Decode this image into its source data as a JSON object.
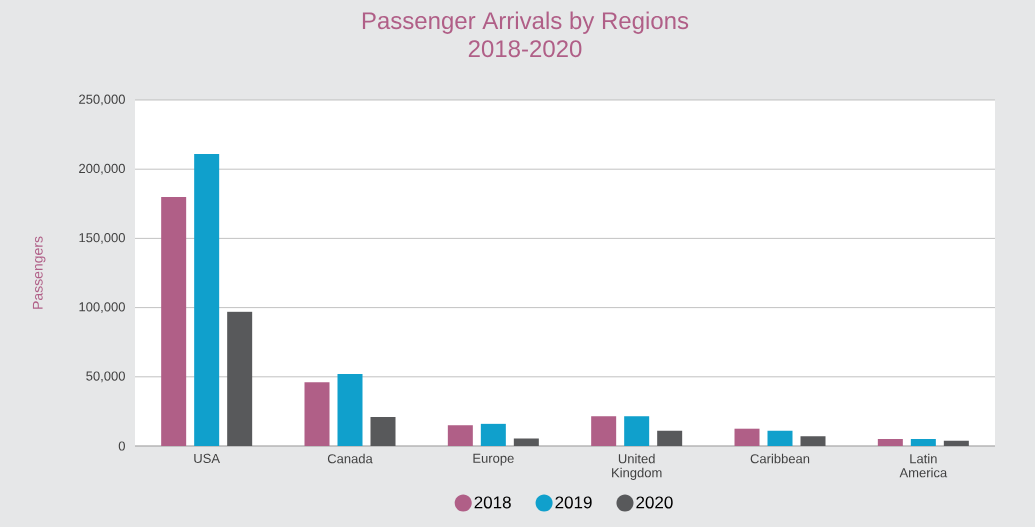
{
  "chart_data": {
    "type": "bar",
    "title": "Passenger Arrivals by Regions",
    "subtitle": "2018-2020",
    "ylabel": "Passengers",
    "categories": [
      "USA",
      "Canada",
      "Europe",
      "United Kingdom",
      "Caribbean",
      "Latin America"
    ],
    "series": [
      {
        "name": "2018",
        "color": "#b05f87",
        "values": [
          180000,
          46000,
          15000,
          21500,
          12500,
          5000
        ]
      },
      {
        "name": "2019",
        "color": "#10a0cc",
        "values": [
          211000,
          52000,
          16000,
          21500,
          11000,
          5000
        ]
      },
      {
        "name": "2020",
        "color": "#58595b",
        "values": [
          97000,
          21000,
          5500,
          11000,
          7000,
          3800
        ]
      }
    ],
    "ylim": [
      0,
      250000
    ],
    "yticks": [
      0,
      {
        "value": 50000,
        "label": "50,000"
      },
      {
        "value": 100000,
        "label": "100,000"
      },
      {
        "value": 150000,
        "label": "150,000"
      },
      {
        "value": 200000,
        "label": "200,000"
      },
      {
        "value": 250000,
        "label": "250,000"
      }
    ],
    "grid": "y",
    "legend": "bottom"
  }
}
